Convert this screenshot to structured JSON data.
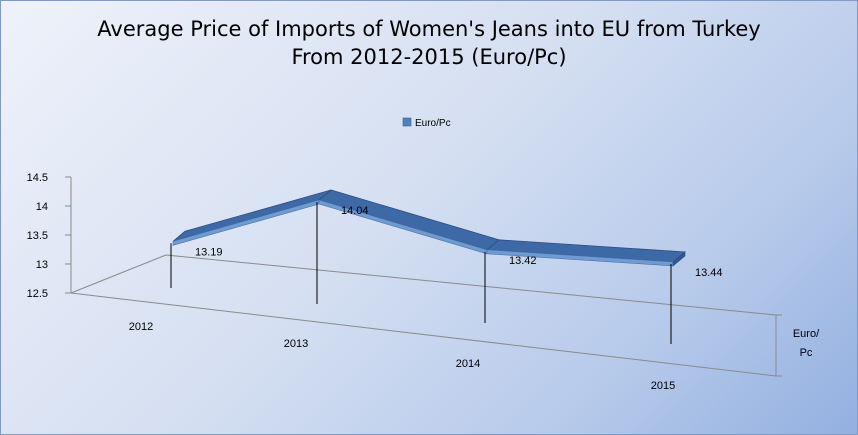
{
  "chart_data": {
    "type": "line",
    "title_line1": "Average Price of Imports of Women's Jeans into EU from Turkey",
    "title_line2": "From 2012-2015  (Euro/Pc)",
    "categories": [
      "2012",
      "2013",
      "2014",
      "2015"
    ],
    "series": [
      {
        "name": "Euro/Pc",
        "values": [
          13.19,
          14.04,
          13.42,
          13.44
        ],
        "labels": [
          "13.19",
          "14.04",
          "13.42",
          "13.44"
        ]
      }
    ],
    "ylim": [
      12.5,
      14.5
    ],
    "yticks": [
      "12.5",
      "13",
      "13.5",
      "14",
      "14.5"
    ],
    "series_axis_label_line1": "Euro/",
    "series_axis_label_line2": "Pc",
    "legend_position": "top",
    "color": "#4f81bd",
    "three_d": true
  }
}
